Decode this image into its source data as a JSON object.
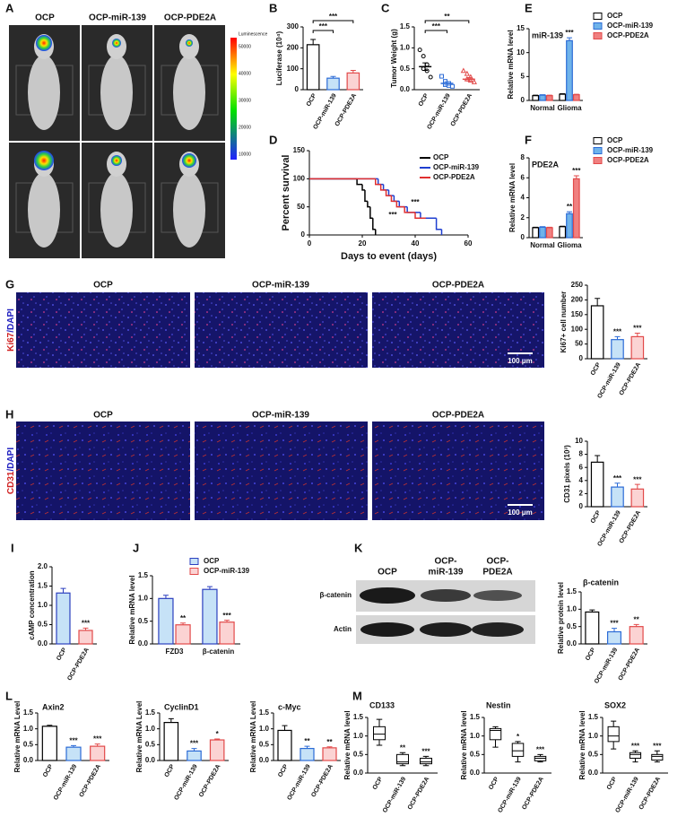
{
  "panel_A": {
    "label": "A",
    "columns": [
      "OCP",
      "OCP-miR-139",
      "OCP-PDE2A"
    ],
    "colorbar_title": "Luminescence",
    "colorbar_ticks": [
      50000,
      40000,
      30000,
      20000,
      10000
    ]
  },
  "panel_G": {
    "label": "G",
    "columns": [
      "OCP",
      "OCP-miR-139",
      "OCP-PDE2A"
    ],
    "stain": [
      "Ki67",
      "/DAPI"
    ],
    "scale_bar": "100 μm"
  },
  "panel_H": {
    "label": "H",
    "columns": [
      "OCP",
      "OCP-miR-139",
      "OCP-PDE2A"
    ],
    "stain": [
      "CD31",
      "/DAPI"
    ],
    "scale_bar": "100 μm"
  },
  "panel_K": {
    "label": "K",
    "lanes": [
      [
        "OCP"
      ],
      [
        "OCP-",
        "miR-139"
      ],
      [
        "OCP-",
        "PDE2A"
      ]
    ],
    "rows": [
      "β-catenin",
      "Actin"
    ]
  },
  "chart_data": [
    {
      "type": "bar",
      "panel": "B",
      "ylabel": "Luciferase (10⁴)",
      "categories": [
        "OCP",
        "OCP-miR-139",
        "OCP-PDE2A"
      ],
      "values": [
        215,
        55,
        80
      ],
      "errors": [
        25,
        8,
        12
      ],
      "colors": [
        "#ffffff",
        "#c6e2f7",
        "#fbd3d3"
      ],
      "edge_colors": [
        "#000000",
        "#2b6bd6",
        "#e24a4a"
      ],
      "ylim": [
        0,
        300
      ],
      "yticks": [
        0,
        100,
        200,
        300
      ],
      "annotations": [
        "***",
        "***"
      ]
    },
    {
      "type": "scatter",
      "panel": "C",
      "ylabel": "Tumor Weight (g)",
      "categories": [
        "OCP",
        "OCP-miR-139",
        "OCP-PDE2A"
      ],
      "points": [
        [
          0.95,
          0.8,
          0.6,
          0.5,
          0.45,
          0.3
        ],
        [
          0.32,
          0.2,
          0.15,
          0.12,
          0.1,
          0.08
        ],
        [
          0.45,
          0.38,
          0.3,
          0.25,
          0.22,
          0.18
        ]
      ],
      "means": [
        0.55,
        0.15,
        0.25
      ],
      "errors": [
        0.09,
        0.04,
        0.04
      ],
      "markers": [
        "circle",
        "square",
        "triangle"
      ],
      "edge_colors": [
        "#000000",
        "#2b6bd6",
        "#e24a4a"
      ],
      "ylim": [
        0,
        1.5
      ],
      "yticks": [
        {
          "value": 0,
          "label": "0.0"
        },
        0.5,
        {
          "value": 1,
          "label": "1.0"
        },
        1.5
      ],
      "annotations": [
        "**",
        "***"
      ]
    },
    {
      "type": "line",
      "panel": "D",
      "ylabel": "Percent survival",
      "xlabel": "Days to event (days)",
      "series": [
        {
          "name": "OCP",
          "color": "#000000",
          "x": [
            0,
            18,
            20,
            21,
            22,
            23,
            24,
            25
          ],
          "values": [
            100,
            90,
            80,
            60,
            50,
            30,
            10,
            0
          ]
        },
        {
          "name": "OCP-miR-139",
          "color": "#1f3fd0",
          "x": [
            0,
            26,
            28,
            30,
            32,
            34,
            37,
            42,
            48,
            50
          ],
          "values": [
            100,
            90,
            80,
            70,
            60,
            50,
            40,
            30,
            10,
            0
          ]
        },
        {
          "name": "OCP-PDE2A",
          "color": "#e03030",
          "x": [
            0,
            25,
            27,
            29,
            31,
            33,
            36,
            40,
            44
          ],
          "values": [
            100,
            90,
            80,
            70,
            60,
            50,
            40,
            30,
            30
          ]
        }
      ],
      "xlim": [
        0,
        60
      ],
      "xticks": [
        0,
        20,
        40,
        60
      ],
      "ylim": [
        0,
        150
      ],
      "yticks": [
        0,
        50,
        100,
        150
      ],
      "annotations": [
        "***",
        "***"
      ]
    },
    {
      "type": "bar",
      "panel": "E",
      "title": "miR-139",
      "ylabel": "Relative mRNA level",
      "categories": [
        "Normal",
        "Glioma"
      ],
      "series": [
        {
          "name": "OCP",
          "color": "#ffffff",
          "edge_color": "#000000",
          "values": [
            1,
            1.3
          ],
          "errors": [
            0.1,
            0.1
          ]
        },
        {
          "name": "OCP-miR-139",
          "color": "#6fb3ea",
          "edge_color": "#2b6bd6",
          "values": [
            1.1,
            12.5
          ],
          "errors": [
            0.1,
            0.6
          ]
        },
        {
          "name": "OCP-PDE2A",
          "color": "#f08080",
          "edge_color": "#e24a4a",
          "values": [
            1,
            1.2
          ],
          "errors": [
            0.1,
            0.1
          ]
        }
      ],
      "ylim": [
        0,
        15
      ],
      "yticks": [
        0,
        5,
        10,
        15
      ],
      "annotations": [
        "***"
      ]
    },
    {
      "type": "bar",
      "panel": "F",
      "title": "PDE2A",
      "ylabel": "Relative mRNA level",
      "categories": [
        "Normal",
        "Glioma"
      ],
      "series": [
        {
          "name": "OCP",
          "color": "#ffffff",
          "edge_color": "#000000",
          "values": [
            1,
            1.1
          ],
          "errors": [
            0.05,
            0.05
          ]
        },
        {
          "name": "OCP-miR-139",
          "color": "#6fb3ea",
          "edge_color": "#2b6bd6",
          "values": [
            1.05,
            2.4
          ],
          "errors": [
            0.05,
            0.2
          ]
        },
        {
          "name": "OCP-PDE2A",
          "color": "#f08080",
          "edge_color": "#e24a4a",
          "values": [
            1,
            5.9
          ],
          "errors": [
            0.05,
            0.3
          ]
        }
      ],
      "ylim": [
        0,
        8
      ],
      "yticks": [
        0,
        2,
        4,
        6,
        8
      ],
      "annotations": [
        "**",
        "***"
      ]
    },
    {
      "type": "bar",
      "ylabel": "Ki67+ cell number",
      "categories": [
        "OCP",
        "OCP-miR-139",
        "OCP-PDE2A"
      ],
      "values": [
        180,
        65,
        75
      ],
      "errors": [
        25,
        10,
        12
      ],
      "colors": [
        "#ffffff",
        "#c6e2f7",
        "#fbd3d3"
      ],
      "edge_colors": [
        "#000000",
        "#2b6bd6",
        "#e24a4a"
      ],
      "ylim": [
        0,
        250
      ],
      "yticks": [
        0,
        50,
        100,
        150,
        200,
        250
      ],
      "annotations": [
        "***",
        "***"
      ]
    },
    {
      "type": "bar",
      "ylabel": "CD31 pixels (10³)",
      "categories": [
        "OCP",
        "OCP-miR-139",
        "OCP-PDE2A"
      ],
      "values": [
        6.8,
        3.0,
        2.7
      ],
      "errors": [
        1.0,
        0.6,
        0.7
      ],
      "colors": [
        "#ffffff",
        "#c6e2f7",
        "#fbd3d3"
      ],
      "edge_colors": [
        "#000000",
        "#2b6bd6",
        "#e24a4a"
      ],
      "ylim": [
        0,
        10
      ],
      "yticks": [
        0,
        2,
        4,
        6,
        8,
        10
      ],
      "annotations": [
        "***",
        "***"
      ]
    },
    {
      "type": "bar",
      "panel": "I",
      "ylabel": "cAMP concentration",
      "categories": [
        "OCP",
        "OCP-PDE2A"
      ],
      "values": [
        1.32,
        0.35
      ],
      "errors": [
        0.12,
        0.06
      ],
      "colors": [
        "#c6e2f7",
        "#fbd3d3"
      ],
      "edge_colors": [
        "#2b3fbf",
        "#e24a4a"
      ],
      "ylim": [
        0,
        2
      ],
      "yticks": [
        {
          "value": 0,
          "label": "0.0"
        },
        0.5,
        {
          "value": 1,
          "label": "1.0"
        },
        1.5,
        {
          "value": 2,
          "label": "2.0"
        }
      ],
      "annotations": [
        "***"
      ]
    },
    {
      "type": "bar",
      "panel": "J",
      "ylabel": "Relative mRNA level",
      "categories": [
        "FZD3",
        "β-catenin"
      ],
      "series": [
        {
          "name": "OCP",
          "color": "#c6e2f7",
          "edge_color": "#2b3fbf",
          "values": [
            1.0,
            1.2
          ],
          "errors": [
            0.07,
            0.06
          ]
        },
        {
          "name": "OCP-miR-139",
          "color": "#fbd3d3",
          "edge_color": "#e24a4a",
          "values": [
            0.42,
            0.48
          ],
          "errors": [
            0.04,
            0.04
          ]
        }
      ],
      "ylim": [
        0,
        1.5
      ],
      "yticks": [
        {
          "value": 0,
          "label": "0.0"
        },
        0.5,
        {
          "value": 1,
          "label": "1.0"
        },
        1.5
      ],
      "annotations": [
        "**",
        "***"
      ]
    },
    {
      "type": "bar",
      "title": "β-catenin",
      "ylabel": "Relative protein level",
      "categories": [
        "OCP",
        "OCP-miR-139",
        "OCP-PDE2A"
      ],
      "values": [
        0.92,
        0.35,
        0.5
      ],
      "errors": [
        0.06,
        0.1,
        0.06
      ],
      "colors": [
        "#ffffff",
        "#c6e2f7",
        "#fbd3d3"
      ],
      "edge_colors": [
        "#000000",
        "#2b6bd6",
        "#e24a4a"
      ],
      "ylim": [
        0,
        1.5
      ],
      "yticks": [
        {
          "value": 0,
          "label": "0.0"
        },
        0.5,
        {
          "value": 1,
          "label": "1.0"
        },
        1.5
      ],
      "annotations": [
        "***",
        "**"
      ]
    },
    {
      "type": "bar",
      "panel": "L",
      "title": "Axin2",
      "ylabel": "Relative mRNA Level",
      "categories": [
        "OCP",
        "OCP-miR-139",
        "OCP-PDE2A"
      ],
      "values": [
        1.08,
        0.42,
        0.45
      ],
      "errors": [
        0.03,
        0.05,
        0.07
      ],
      "colors": [
        "#ffffff",
        "#c6e2f7",
        "#fbd3d3"
      ],
      "edge_colors": [
        "#000000",
        "#2b6bd6",
        "#e24a4a"
      ],
      "ylim": [
        0,
        1.5
      ],
      "yticks": [
        {
          "value": 0,
          "label": "0.0"
        },
        0.5,
        {
          "value": 1,
          "label": "1.0"
        },
        1.5
      ],
      "annotations": [
        "***",
        "***"
      ]
    },
    {
      "type": "bar",
      "title": "CyclinD1",
      "ylabel": "Relative mRNA Level",
      "categories": [
        "OCP",
        "OCP-miR-139",
        "OCP-PDE2A"
      ],
      "values": [
        1.2,
        0.3,
        0.65
      ],
      "errors": [
        0.12,
        0.08,
        0.03
      ],
      "colors": [
        "#ffffff",
        "#c6e2f7",
        "#fbd3d3"
      ],
      "edge_colors": [
        "#000000",
        "#2b6bd6",
        "#e24a4a"
      ],
      "ylim": [
        0,
        1.5
      ],
      "yticks": [
        {
          "value": 0,
          "label": "0.0"
        },
        0.5,
        {
          "value": 1,
          "label": "1.0"
        },
        1.5
      ],
      "annotations": [
        "***",
        "*"
      ]
    },
    {
      "type": "bar",
      "title": "c-Myc",
      "ylabel": "Relative mRNA Level",
      "categories": [
        "OCP",
        "OCP-miR-139",
        "OCP-PDE2A"
      ],
      "values": [
        0.95,
        0.38,
        0.4
      ],
      "errors": [
        0.15,
        0.07,
        0.03
      ],
      "colors": [
        "#ffffff",
        "#c6e2f7",
        "#fbd3d3"
      ],
      "edge_colors": [
        "#000000",
        "#2b6bd6",
        "#e24a4a"
      ],
      "ylim": [
        0,
        1.5
      ],
      "yticks": [
        {
          "value": 0,
          "label": "0.0"
        },
        0.5,
        {
          "value": 1,
          "label": "1.0"
        },
        1.5
      ],
      "annotations": [
        "**",
        "**"
      ]
    },
    {
      "type": "box",
      "panel": "M",
      "title": "CD133",
      "ylabel": "Relative mRNA level",
      "categories": [
        "OCP",
        "OCP-miR-139",
        "OCP-PDE2A"
      ],
      "boxes": [
        {
          "min": 0.75,
          "q1": 0.9,
          "median": 1.05,
          "q3": 1.25,
          "max": 1.45
        },
        {
          "min": 0.2,
          "q1": 0.25,
          "median": 0.3,
          "q3": 0.5,
          "max": 0.55
        },
        {
          "min": 0.2,
          "q1": 0.25,
          "median": 0.3,
          "q3": 0.4,
          "max": 0.45
        }
      ],
      "color": "#000000",
      "ylim": [
        0,
        1.5
      ],
      "yticks": [
        {
          "value": 0,
          "label": "0.0"
        },
        0.5,
        {
          "value": 1,
          "label": "1.0"
        },
        1.5
      ],
      "annotations": [
        "**",
        "***"
      ]
    },
    {
      "type": "box",
      "title": "Nestin",
      "ylabel": "Relative mRNA level",
      "categories": [
        "OCP",
        "OCP-miR-139",
        "OCP-PDE2A"
      ],
      "boxes": [
        {
          "min": 0.7,
          "q1": 0.9,
          "median": 1.15,
          "q3": 1.2,
          "max": 1.25
        },
        {
          "min": 0.3,
          "q1": 0.45,
          "median": 0.6,
          "q3": 0.8,
          "max": 0.85
        },
        {
          "min": 0.3,
          "q1": 0.33,
          "median": 0.4,
          "q3": 0.45,
          "max": 0.5
        }
      ],
      "color": "#000000",
      "ylim": [
        0,
        1.5
      ],
      "yticks": [
        {
          "value": 0,
          "label": "0.0"
        },
        0.5,
        {
          "value": 1,
          "label": "1.0"
        },
        1.5
      ],
      "annotations": [
        "*",
        "***"
      ]
    },
    {
      "type": "box",
      "title": "SOX2",
      "ylabel": "Relative mRNA level",
      "categories": [
        "OCP",
        "OCP-miR-139",
        "OCP-PDE2A"
      ],
      "boxes": [
        {
          "min": 0.65,
          "q1": 0.85,
          "median": 1.0,
          "q3": 1.25,
          "max": 1.4
        },
        {
          "min": 0.3,
          "q1": 0.4,
          "median": 0.5,
          "q3": 0.55,
          "max": 0.6
        },
        {
          "min": 0.3,
          "q1": 0.35,
          "median": 0.45,
          "q3": 0.5,
          "max": 0.6
        }
      ],
      "color": "#000000",
      "ylim": [
        0,
        1.5
      ],
      "yticks": [
        {
          "value": 0,
          "label": "0.0"
        },
        0.5,
        {
          "value": 1,
          "label": "1.0"
        },
        1.5
      ],
      "annotations": [
        "***",
        "***"
      ]
    }
  ]
}
